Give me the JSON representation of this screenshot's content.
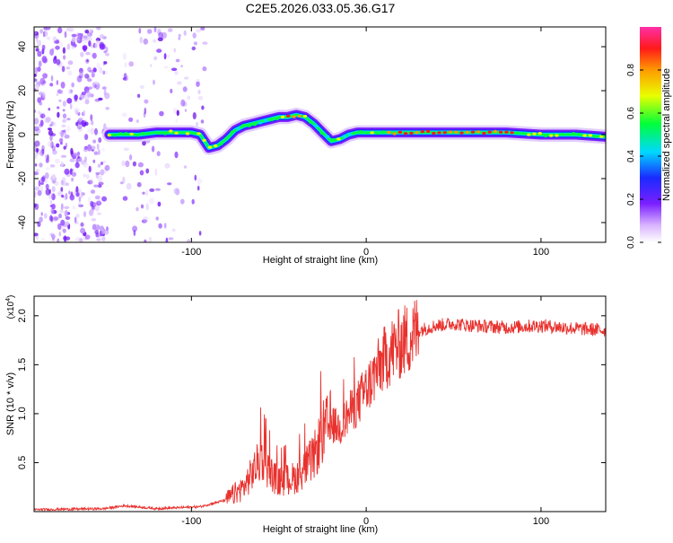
{
  "title": "C2E5.2026.033.05.36.G17",
  "chart_data": [
    {
      "type": "heatmap",
      "xlabel": "Height of straight line (km)",
      "ylabel": "Frequency (Hz)",
      "xlim": [
        -190,
        137
      ],
      "ylim": [
        -49,
        49
      ],
      "xticks": [
        -100,
        0,
        100
      ],
      "xtick_labels": [
        "-100",
        "0",
        "100"
      ],
      "yticks": [
        -40,
        -20,
        0,
        20,
        40
      ],
      "ytick_labels": [
        "-40",
        "-20",
        "0",
        "20",
        "40"
      ],
      "colorbar": {
        "label": "Normalized spectral amplitude",
        "range": [
          0.0,
          1.0
        ],
        "ticks": [
          0.0,
          0.2,
          0.4,
          0.6,
          0.8
        ],
        "tick_labels": [
          "0.0",
          "0.2",
          "0.4",
          "0.6",
          "0.8"
        ]
      },
      "ridge": {
        "x": [
          -147,
          -138,
          -130,
          -120,
          -110,
          -100,
          -95,
          -90,
          -85,
          -80,
          -75,
          -70,
          -65,
          -60,
          -55,
          -50,
          -45,
          -40,
          -35,
          -30,
          -25,
          -20,
          -15,
          -10,
          -5,
          0,
          10,
          20,
          40,
          60,
          80,
          100,
          120,
          137
        ],
        "freq": [
          0,
          0,
          0,
          1,
          1,
          1,
          0,
          -6,
          -5,
          -2,
          2,
          4,
          5,
          6,
          7,
          8,
          8,
          9,
          8,
          5,
          1,
          -3,
          -2,
          0,
          1,
          1,
          1,
          1,
          1,
          1,
          1,
          0,
          0,
          -1
        ]
      }
    },
    {
      "type": "line",
      "xlabel": "Height of straight line (km)",
      "ylabel": "SNR (10 * v/v)",
      "multiplier_label": "(x10",
      "multiplier_exp": "4",
      "xlim": [
        -190,
        137
      ],
      "ylim": [
        0,
        2.2
      ],
      "xticks": [
        -100,
        0,
        100
      ],
      "xtick_labels": [
        "-100",
        "0",
        "100"
      ],
      "yticks": [
        0.5,
        1.0,
        1.5,
        2.0
      ],
      "ytick_labels": [
        "0.5",
        "1.0",
        "1.5",
        "2.0"
      ],
      "color": "#e8322e",
      "trend": {
        "x": [
          -190,
          -150,
          -138,
          -120,
          -95,
          -80,
          -70,
          -60,
          -55,
          -50,
          -40,
          -30,
          -25,
          -20,
          -15,
          -10,
          -5,
          0,
          5,
          10,
          15,
          20,
          25,
          30,
          40,
          50,
          60,
          80,
          100,
          120,
          137
        ],
        "y": [
          0.02,
          0.03,
          0.06,
          0.03,
          0.05,
          0.12,
          0.25,
          0.55,
          0.4,
          0.3,
          0.35,
          0.55,
          0.8,
          0.9,
          0.85,
          1.0,
          1.1,
          1.25,
          1.4,
          1.55,
          1.65,
          1.72,
          1.78,
          1.85,
          1.9,
          1.92,
          1.9,
          1.88,
          1.9,
          1.87,
          1.85
        ]
      }
    }
  ]
}
